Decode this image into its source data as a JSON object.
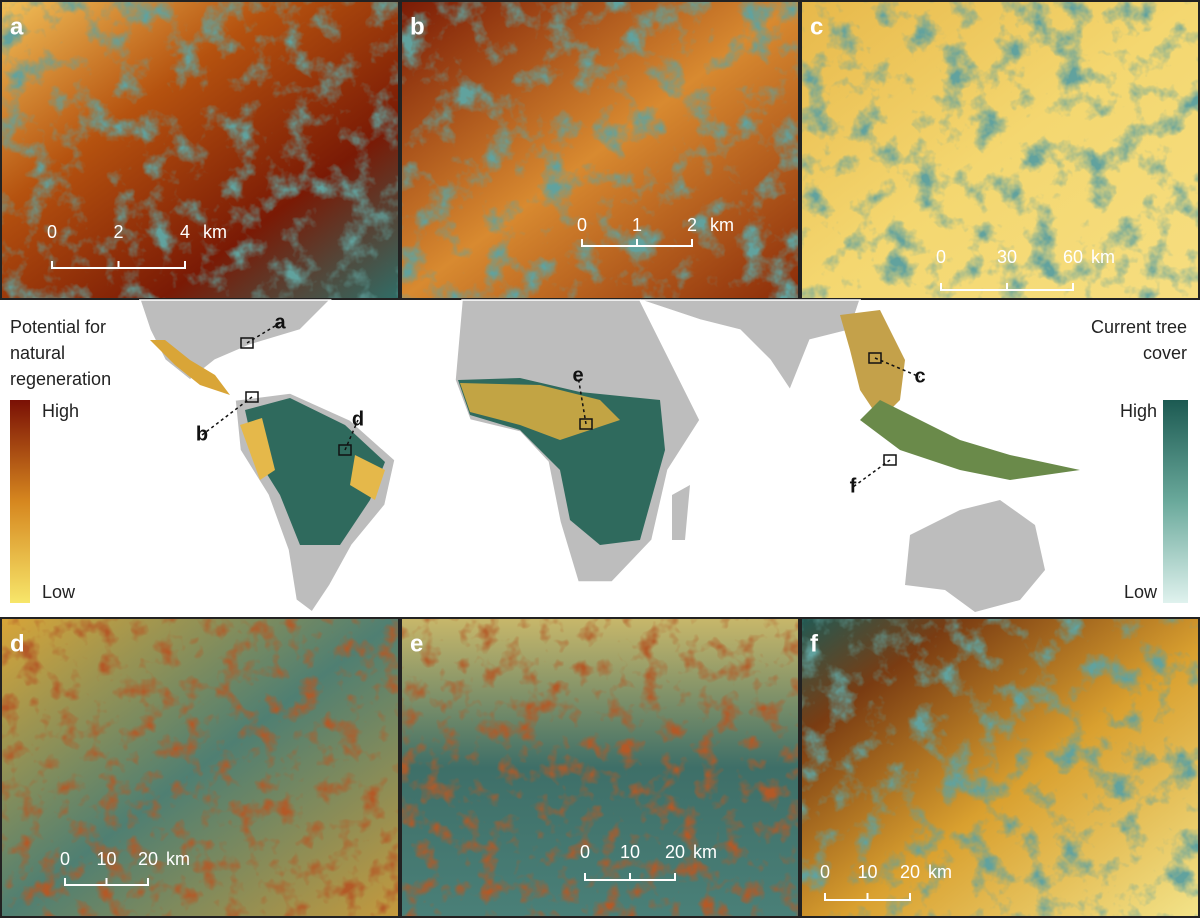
{
  "panels": [
    {
      "letter": "a",
      "scale": {
        "ticks": [
          0,
          2,
          4
        ],
        "unit": "km"
      }
    },
    {
      "letter": "b",
      "scale": {
        "ticks": [
          0,
          1,
          2
        ],
        "unit": "km"
      }
    },
    {
      "letter": "c",
      "scale": {
        "ticks": [
          0,
          30,
          60
        ],
        "unit": "km"
      }
    },
    {
      "letter": "d",
      "scale": {
        "ticks": [
          0,
          10,
          20
        ],
        "unit": "km"
      }
    },
    {
      "letter": "e",
      "scale": {
        "ticks": [
          0,
          10,
          20
        ],
        "unit": "km"
      }
    },
    {
      "letter": "f",
      "scale": {
        "ticks": [
          0,
          10,
          20
        ],
        "unit": "km"
      }
    }
  ],
  "map": {
    "labels": [
      "a",
      "b",
      "c",
      "d",
      "e",
      "f"
    ]
  },
  "legend_left": {
    "title": [
      "Potential for",
      "natural",
      "regeneration"
    ],
    "high": "High",
    "low": "Low"
  },
  "legend_right": {
    "title": [
      "Current tree",
      "cover"
    ],
    "high": "High",
    "low": "Low"
  }
}
